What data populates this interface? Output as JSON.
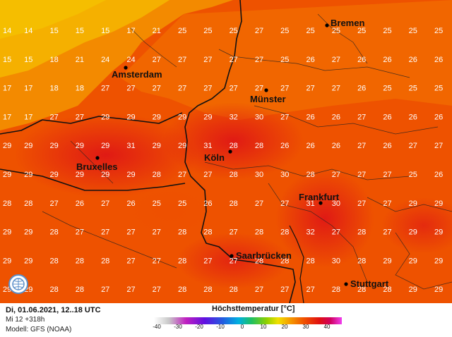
{
  "map": {
    "grid_values": [
      [
        14,
        14,
        15,
        15,
        15,
        17,
        21,
        25,
        25,
        25,
        27,
        25,
        25,
        25,
        25,
        25,
        25,
        25
      ],
      [
        15,
        15,
        18,
        21,
        24,
        24,
        27,
        27,
        27,
        27,
        27,
        25,
        26,
        27,
        26,
        26,
        26,
        26
      ],
      [
        17,
        17,
        18,
        18,
        27,
        27,
        27,
        27,
        27,
        27,
        27,
        27,
        27,
        27,
        26,
        25,
        25,
        25
      ],
      [
        17,
        17,
        27,
        27,
        29,
        29,
        29,
        29,
        29,
        32,
        30,
        27,
        26,
        26,
        27,
        26,
        26,
        26
      ],
      [
        29,
        29,
        29,
        29,
        29,
        31,
        29,
        29,
        31,
        28,
        28,
        26,
        26,
        26,
        27,
        26,
        27,
        27
      ],
      [
        29,
        29,
        29,
        29,
        29,
        29,
        28,
        27,
        27,
        28,
        30,
        30,
        28,
        27,
        27,
        27,
        25,
        26
      ],
      [
        28,
        28,
        27,
        26,
        27,
        26,
        25,
        25,
        26,
        28,
        27,
        27,
        31,
        30,
        27,
        27,
        29,
        29
      ],
      [
        29,
        29,
        28,
        27,
        27,
        27,
        27,
        28,
        28,
        27,
        28,
        28,
        32,
        27,
        28,
        27,
        29,
        29
      ],
      [
        29,
        29,
        28,
        28,
        28,
        27,
        27,
        28,
        27,
        27,
        28,
        28,
        28,
        30,
        28,
        29,
        29,
        29
      ],
      [
        29,
        29,
        28,
        28,
        27,
        27,
        27,
        28,
        28,
        28,
        27,
        27,
        27,
        28,
        28,
        28,
        29,
        29
      ]
    ],
    "cities": [
      {
        "name": "Bremen"
      },
      {
        "name": "Amsterdam"
      },
      {
        "name": "Münster"
      },
      {
        "name": "Köln"
      },
      {
        "name": "Bruxelles"
      },
      {
        "name": "Frankfurt"
      },
      {
        "name": "Saarbrücken"
      },
      {
        "name": "Stuttgart"
      }
    ]
  },
  "footer": {
    "date": "Di, 01.06.2021, 12..18 UTC",
    "run": "Mi 12 +318h",
    "model": "Modell: GFS (NOAA)",
    "legend_title": "Höchsttemperatur [°C]",
    "ticks": [
      "-40",
      "-30",
      "-20",
      "-10",
      "0",
      "10",
      "20",
      "30",
      "40"
    ]
  },
  "colors": {
    "sea_yellow": "#f5b800",
    "orange": "#f07800",
    "red_orange": "#ee4c00",
    "red": "#e82a10",
    "deep_red": "#d81818"
  }
}
